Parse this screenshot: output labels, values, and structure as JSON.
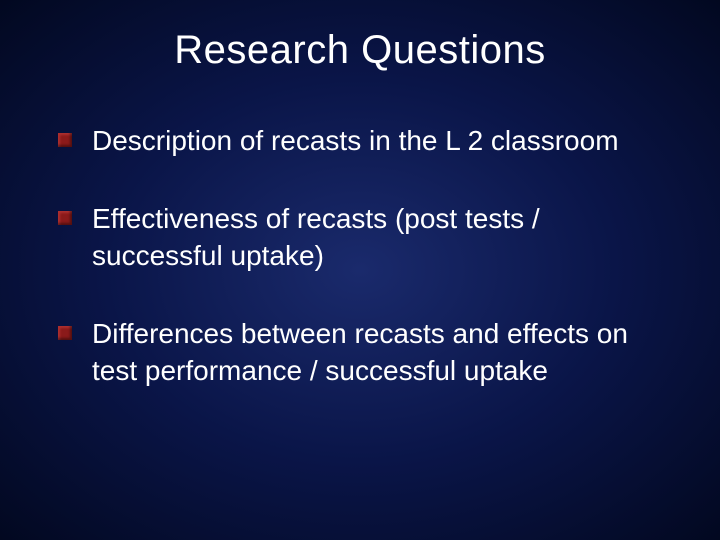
{
  "slide": {
    "title": "Research Questions",
    "title_color": "#ffffff",
    "title_fontsize": 40,
    "background_gradient": {
      "type": "radial",
      "center_color": "#1a2a6c",
      "mid_color": "#0a1548",
      "edge_color": "#020820"
    },
    "bullets": [
      "Description of recasts in the L 2 classroom",
      "Effectiveness of recasts (post tests / successful uptake)",
      "Differences between recasts and effects on test performance / successful uptake"
    ],
    "bullet_marker_color": "#8b1a1a",
    "bullet_text_color": "#ffffff",
    "bullet_fontsize": 28,
    "font_family": "Arial"
  }
}
